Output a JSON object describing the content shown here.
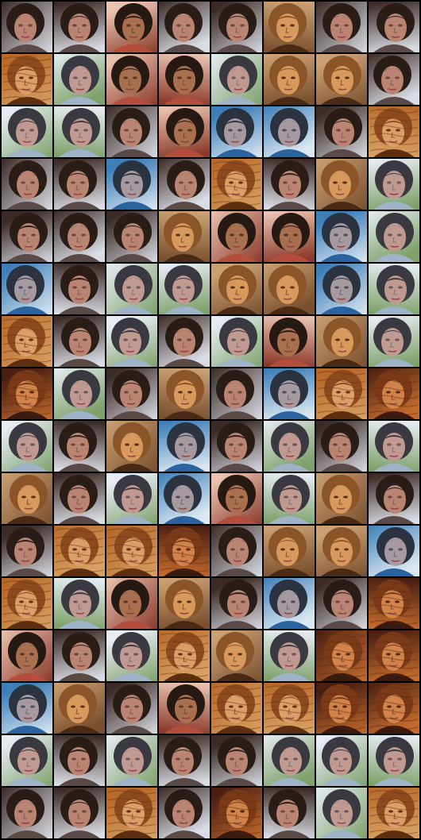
{
  "grid": {
    "rows": 16,
    "cols": 8,
    "palettes": {
      "A": {
        "bg1": "#3b2a26",
        "bg2": "#d9dce4",
        "hair": "#2a1d18",
        "skin": "#b98471",
        "shade": "#6e4a3e",
        "cloth": "#5a4a47"
      },
      "B": {
        "bg1": "#caa074",
        "bg2": "#7a4f2e",
        "hair": "#8a5528",
        "skin": "#d89a5c",
        "shade": "#5e3518",
        "cloth": "#4a2a14"
      },
      "C": {
        "bg1": "#e6ecf2",
        "bg2": "#7ea26a",
        "hair": "#3a3840",
        "skin": "#c09a90",
        "shade": "#6a5a5e",
        "cloth": "#9fb3c8"
      },
      "D": {
        "bg1": "#3f7fb8",
        "bg2": "#dbe8f2",
        "hair": "#2b3340",
        "skin": "#a69aa0",
        "shade": "#4d5460",
        "cloth": "#2a63a0"
      },
      "E": {
        "bg1": "#4a1f12",
        "bg2": "#c36a2c",
        "hair": "#7a3a18",
        "skin": "#d2834a",
        "shade": "#5a2a12",
        "cloth": "#3a1a0e"
      },
      "F": {
        "bg1": "#e9c2b0",
        "bg2": "#8b3a2a",
        "hair": "#261813",
        "skin": "#a8704e",
        "shade": "#5b3626",
        "cloth": "#b54d3c"
      },
      "G": {
        "bg1": "#b86a2a",
        "bg2": "#d8a162",
        "hair": "#8c4a1e",
        "skin": "#dba06a",
        "shade": "#6a3414",
        "cloth": "#5e2e10"
      }
    },
    "tiles": [
      "A",
      "A",
      "F",
      "A",
      "A",
      "B",
      "A",
      "A",
      "G",
      "C",
      "F",
      "F",
      "C",
      "B",
      "B",
      "A",
      "C",
      "C",
      "A",
      "F",
      "D",
      "D",
      "A",
      "G",
      "A",
      "A",
      "D",
      "A",
      "G",
      "A",
      "B",
      "C",
      "A",
      "A",
      "A",
      "B",
      "F",
      "F",
      "D",
      "C",
      "D",
      "A",
      "C",
      "C",
      "B",
      "B",
      "D",
      "C",
      "G",
      "A",
      "C",
      "A",
      "C",
      "F",
      "B",
      "C",
      "E",
      "C",
      "A",
      "B",
      "A",
      "D",
      "G",
      "E",
      "C",
      "A",
      "B",
      "D",
      "A",
      "C",
      "A",
      "C",
      "B",
      "A",
      "C",
      "D",
      "F",
      "C",
      "B",
      "A",
      "A",
      "G",
      "G",
      "E",
      "A",
      "B",
      "B",
      "D",
      "G",
      "C",
      "F",
      "B",
      "A",
      "D",
      "A",
      "E",
      "F",
      "A",
      "C",
      "G",
      "B",
      "C",
      "E",
      "E",
      "D",
      "B",
      "A",
      "F",
      "G",
      "G",
      "E",
      "E",
      "C",
      "A",
      "C",
      "A",
      "A",
      "C",
      "C",
      "C",
      "A",
      "A",
      "G",
      "A",
      "E",
      "A",
      "C",
      "G"
    ]
  }
}
